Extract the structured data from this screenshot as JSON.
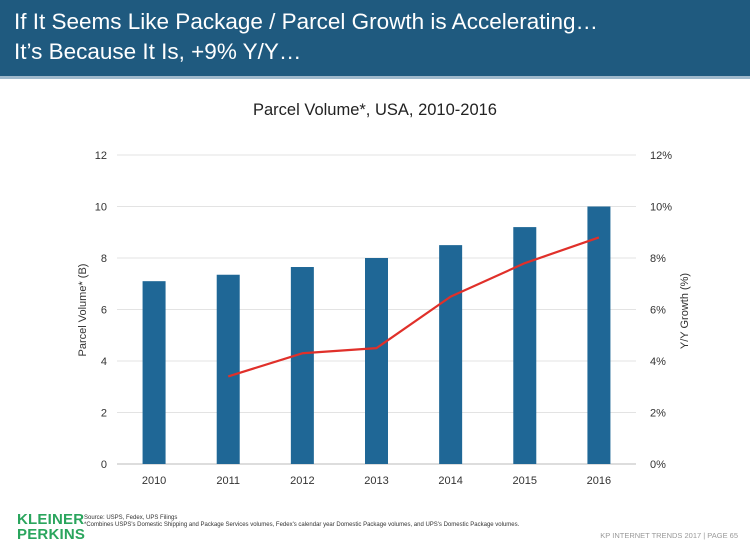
{
  "header": {
    "title_line1": "If It Seems Like Package / Parcel Growth is Accelerating…",
    "title_line2": "It’s Because It Is, +9% Y/Y…"
  },
  "chart_data": {
    "type": "bar",
    "title": "Parcel Volume*, USA, 2010-2016",
    "categories": [
      "2010",
      "2011",
      "2012",
      "2013",
      "2014",
      "2015",
      "2016"
    ],
    "series": [
      {
        "name": "Parcel Volume* (B)",
        "type": "bar",
        "axis": "left",
        "color": "#1f6796",
        "values": [
          7.1,
          7.35,
          7.65,
          8.0,
          8.5,
          9.2,
          10.0
        ]
      },
      {
        "name": "Y/Y Growth (%)",
        "type": "line",
        "axis": "right",
        "color": "#e0302a",
        "values": [
          null,
          3.4,
          4.3,
          4.5,
          6.5,
          7.8,
          8.8
        ]
      }
    ],
    "ylabel": "Parcel Volume* (B)",
    "y2label": "Y/Y Growth (%)",
    "ylim": [
      0,
      12
    ],
    "y2lim": [
      0,
      12
    ],
    "yticks": [
      "0",
      "2",
      "4",
      "6",
      "8",
      "10",
      "12"
    ],
    "y2ticks": [
      "0%",
      "2%",
      "4%",
      "6%",
      "8%",
      "10%",
      "12%"
    ],
    "grid": true
  },
  "footer": {
    "logo_line1": "KLEINER",
    "logo_line2": "PERKINS",
    "source": "Source: USPS, Fedex, UPS Filings",
    "note": "*Combines USPS's Domestic Shipping and Package Services volumes, Fedex's calendar year Domestic Package volumes, and UPS's Domestic Package volumes.",
    "page_label": "KP INTERNET TRENDS 2017  |  PAGE 65"
  }
}
